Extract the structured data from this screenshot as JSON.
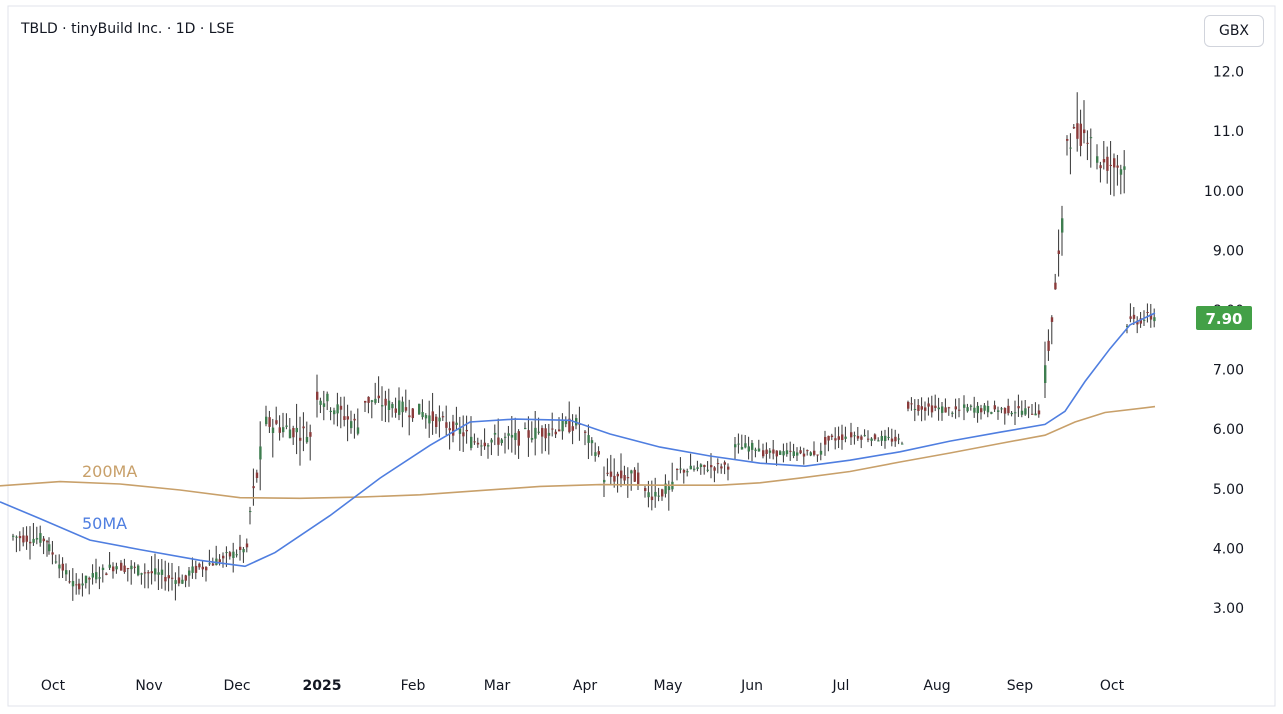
{
  "header": {
    "title": "TBLD · tinyBuild Inc. · 1D · LSE",
    "currency": "GBX"
  },
  "chart_data": {
    "type": "candlestick",
    "symbol": "TBLD",
    "timeframe": "1D",
    "exchange": "LSE",
    "currency": "GBX",
    "last_price": "7.90",
    "ylim": [
      2.3,
      12.6
    ],
    "y_ticks": [
      "3.00",
      "4.00",
      "5.00",
      "6.00",
      "7.00",
      "8.00",
      "9.00",
      "10.00",
      "11.0",
      "12.0"
    ],
    "x_ticks": [
      "Oct",
      "Nov",
      "Dec",
      "2025",
      "Feb",
      "Mar",
      "Apr",
      "May",
      "Jun",
      "Jul",
      "Aug",
      "Sep",
      "Oct"
    ],
    "up_color": "#26a69a",
    "down_color": "#ef5350",
    "series": [
      {
        "name": "200MA",
        "color": "#c8a06a",
        "points": [
          [
            0,
            5.05
          ],
          [
            60,
            5.12
          ],
          [
            120,
            5.08
          ],
          [
            180,
            4.98
          ],
          [
            240,
            4.85
          ],
          [
            300,
            4.84
          ],
          [
            360,
            4.86
          ],
          [
            420,
            4.9
          ],
          [
            480,
            4.97
          ],
          [
            540,
            5.04
          ],
          [
            600,
            5.07
          ],
          [
            660,
            5.06
          ],
          [
            720,
            5.06
          ],
          [
            760,
            5.1
          ],
          [
            800,
            5.18
          ],
          [
            850,
            5.29
          ],
          [
            900,
            5.45
          ],
          [
            950,
            5.6
          ],
          [
            1000,
            5.76
          ],
          [
            1045,
            5.9
          ],
          [
            1075,
            6.12
          ],
          [
            1105,
            6.28
          ],
          [
            1155,
            6.38
          ]
        ]
      },
      {
        "name": "50MA",
        "color": "#4f7ee0",
        "points": [
          [
            0,
            4.78
          ],
          [
            40,
            4.5
          ],
          [
            90,
            4.14
          ],
          [
            140,
            3.98
          ],
          [
            200,
            3.8
          ],
          [
            245,
            3.7
          ],
          [
            275,
            3.93
          ],
          [
            330,
            4.55
          ],
          [
            380,
            5.18
          ],
          [
            430,
            5.73
          ],
          [
            470,
            6.12
          ],
          [
            515,
            6.17
          ],
          [
            570,
            6.15
          ],
          [
            610,
            5.92
          ],
          [
            660,
            5.7
          ],
          [
            710,
            5.55
          ],
          [
            760,
            5.43
          ],
          [
            805,
            5.38
          ],
          [
            850,
            5.48
          ],
          [
            900,
            5.62
          ],
          [
            950,
            5.8
          ],
          [
            1000,
            5.95
          ],
          [
            1045,
            6.08
          ],
          [
            1065,
            6.3
          ],
          [
            1085,
            6.8
          ],
          [
            1110,
            7.35
          ],
          [
            1130,
            7.75
          ],
          [
            1155,
            7.95
          ]
        ]
      }
    ],
    "ohlc_segments": [
      {
        "x0": 12,
        "x1": 46,
        "v0": 4.2,
        "v1": 4.15,
        "amp": 0.2
      },
      {
        "x0": 48,
        "x1": 76,
        "v0": 4.0,
        "v1": 3.3,
        "amp": 0.18
      },
      {
        "x0": 78,
        "x1": 118,
        "v0": 3.4,
        "v1": 3.75,
        "amp": 0.18
      },
      {
        "x0": 120,
        "x1": 186,
        "v0": 3.7,
        "v1": 3.45,
        "amp": 0.2
      },
      {
        "x0": 188,
        "x1": 246,
        "v0": 3.6,
        "v1": 4.0,
        "amp": 0.18
      },
      {
        "x0": 249,
        "x1": 262,
        "v0": 4.6,
        "v1": 5.8,
        "amp": 0.4
      },
      {
        "x0": 265,
        "x1": 312,
        "v0": 6.1,
        "v1": 5.9,
        "amp": 0.3
      },
      {
        "x0": 316,
        "x1": 360,
        "v0": 6.6,
        "v1": 6.0,
        "amp": 0.3
      },
      {
        "x0": 364,
        "x1": 414,
        "v0": 6.5,
        "v1": 6.3,
        "amp": 0.25
      },
      {
        "x0": 418,
        "x1": 466,
        "v0": 6.3,
        "v1": 5.9,
        "amp": 0.25
      },
      {
        "x0": 470,
        "x1": 520,
        "v0": 5.8,
        "v1": 5.85,
        "amp": 0.25
      },
      {
        "x0": 524,
        "x1": 580,
        "v0": 5.9,
        "v1": 6.1,
        "amp": 0.25
      },
      {
        "x0": 584,
        "x1": 600,
        "v0": 5.9,
        "v1": 5.5,
        "amp": 0.2
      },
      {
        "x0": 603,
        "x1": 640,
        "v0": 5.2,
        "v1": 5.2,
        "amp": 0.25
      },
      {
        "x0": 644,
        "x1": 672,
        "v0": 4.9,
        "v1": 5.0,
        "amp": 0.25
      },
      {
        "x0": 676,
        "x1": 730,
        "v0": 5.3,
        "v1": 5.4,
        "amp": 0.15
      },
      {
        "x0": 734,
        "x1": 760,
        "v0": 5.7,
        "v1": 5.7,
        "amp": 0.15
      },
      {
        "x0": 762,
        "x1": 820,
        "v0": 5.6,
        "v1": 5.6,
        "amp": 0.12
      },
      {
        "x0": 824,
        "x1": 846,
        "v0": 5.8,
        "v1": 5.9,
        "amp": 0.15
      },
      {
        "x0": 850,
        "x1": 904,
        "v0": 5.9,
        "v1": 5.8,
        "amp": 0.12
      },
      {
        "x0": 907,
        "x1": 960,
        "v0": 6.4,
        "v1": 6.3,
        "amp": 0.15
      },
      {
        "x0": 963,
        "x1": 1040,
        "v0": 6.35,
        "v1": 6.3,
        "amp": 0.15
      },
      {
        "x0": 1044,
        "x1": 1062,
        "v0": 6.9,
        "v1": 9.5,
        "amp": 0.4
      },
      {
        "x0": 1066,
        "x1": 1092,
        "v0": 10.9,
        "v1": 11.0,
        "amp": 0.4
      },
      {
        "x0": 1096,
        "x1": 1124,
        "v0": 10.5,
        "v1": 10.4,
        "amp": 0.35
      },
      {
        "x0": 1126,
        "x1": 1156,
        "v0": 7.8,
        "v1": 7.9,
        "amp": 0.2
      }
    ]
  }
}
